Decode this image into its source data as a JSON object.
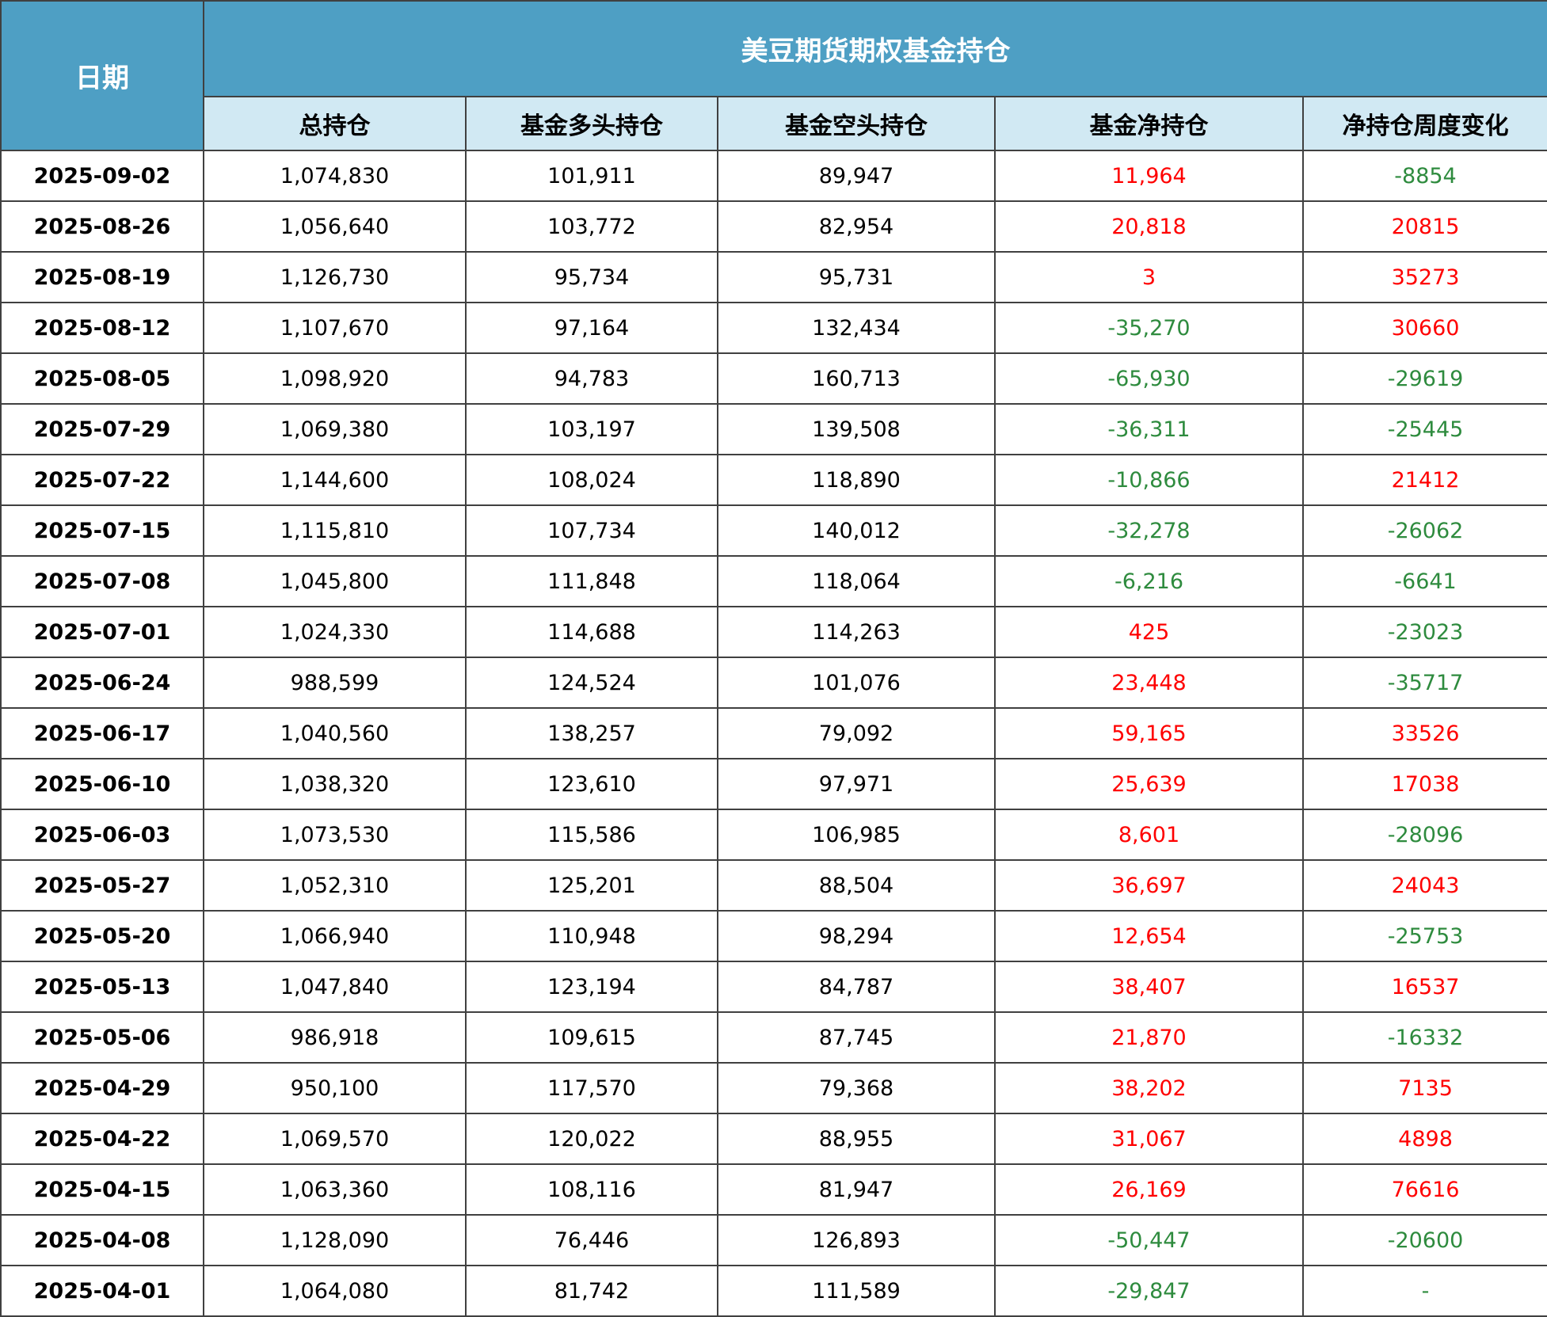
{
  "table": {
    "date_header": "日期",
    "group_header": "美豆期货期权基金持仓",
    "columns": [
      "总持仓",
      "基金多头持仓",
      "基金空头持仓",
      "基金净持仓",
      "净持仓周度变化"
    ],
    "colors": {
      "header_bg": "#4e9fc4",
      "subheader_bg": "#d1e9f3",
      "positive": "#ff0000",
      "negative": "#2e8b3e"
    },
    "rows": [
      {
        "date": "2025-09-02",
        "total": "1,074,830",
        "long": "101,911",
        "short": "89,947",
        "net": "11,964",
        "net_sign": "pos",
        "change": "-8854",
        "change_sign": "neg"
      },
      {
        "date": "2025-08-26",
        "total": "1,056,640",
        "long": "103,772",
        "short": "82,954",
        "net": "20,818",
        "net_sign": "pos",
        "change": "20815",
        "change_sign": "pos"
      },
      {
        "date": "2025-08-19",
        "total": "1,126,730",
        "long": "95,734",
        "short": "95,731",
        "net": "3",
        "net_sign": "pos",
        "change": "35273",
        "change_sign": "pos"
      },
      {
        "date": "2025-08-12",
        "total": "1,107,670",
        "long": "97,164",
        "short": "132,434",
        "net": "-35,270",
        "net_sign": "neg",
        "change": "30660",
        "change_sign": "pos"
      },
      {
        "date": "2025-08-05",
        "total": "1,098,920",
        "long": "94,783",
        "short": "160,713",
        "net": "-65,930",
        "net_sign": "neg",
        "change": "-29619",
        "change_sign": "neg"
      },
      {
        "date": "2025-07-29",
        "total": "1,069,380",
        "long": "103,197",
        "short": "139,508",
        "net": "-36,311",
        "net_sign": "neg",
        "change": "-25445",
        "change_sign": "neg"
      },
      {
        "date": "2025-07-22",
        "total": "1,144,600",
        "long": "108,024",
        "short": "118,890",
        "net": "-10,866",
        "net_sign": "neg",
        "change": "21412",
        "change_sign": "pos"
      },
      {
        "date": "2025-07-15",
        "total": "1,115,810",
        "long": "107,734",
        "short": "140,012",
        "net": "-32,278",
        "net_sign": "neg",
        "change": "-26062",
        "change_sign": "neg"
      },
      {
        "date": "2025-07-08",
        "total": "1,045,800",
        "long": "111,848",
        "short": "118,064",
        "net": "-6,216",
        "net_sign": "neg",
        "change": "-6641",
        "change_sign": "neg"
      },
      {
        "date": "2025-07-01",
        "total": "1,024,330",
        "long": "114,688",
        "short": "114,263",
        "net": "425",
        "net_sign": "pos",
        "change": "-23023",
        "change_sign": "neg"
      },
      {
        "date": "2025-06-24",
        "total": "988,599",
        "long": "124,524",
        "short": "101,076",
        "net": "23,448",
        "net_sign": "pos",
        "change": "-35717",
        "change_sign": "neg"
      },
      {
        "date": "2025-06-17",
        "total": "1,040,560",
        "long": "138,257",
        "short": "79,092",
        "net": "59,165",
        "net_sign": "pos",
        "change": "33526",
        "change_sign": "pos"
      },
      {
        "date": "2025-06-10",
        "total": "1,038,320",
        "long": "123,610",
        "short": "97,971",
        "net": "25,639",
        "net_sign": "pos",
        "change": "17038",
        "change_sign": "pos"
      },
      {
        "date": "2025-06-03",
        "total": "1,073,530",
        "long": "115,586",
        "short": "106,985",
        "net": "8,601",
        "net_sign": "pos",
        "change": "-28096",
        "change_sign": "neg"
      },
      {
        "date": "2025-05-27",
        "total": "1,052,310",
        "long": "125,201",
        "short": "88,504",
        "net": "36,697",
        "net_sign": "pos",
        "change": "24043",
        "change_sign": "pos"
      },
      {
        "date": "2025-05-20",
        "total": "1,066,940",
        "long": "110,948",
        "short": "98,294",
        "net": "12,654",
        "net_sign": "pos",
        "change": "-25753",
        "change_sign": "neg"
      },
      {
        "date": "2025-05-13",
        "total": "1,047,840",
        "long": "123,194",
        "short": "84,787",
        "net": "38,407",
        "net_sign": "pos",
        "change": "16537",
        "change_sign": "pos"
      },
      {
        "date": "2025-05-06",
        "total": "986,918",
        "long": "109,615",
        "short": "87,745",
        "net": "21,870",
        "net_sign": "pos",
        "change": "-16332",
        "change_sign": "neg"
      },
      {
        "date": "2025-04-29",
        "total": "950,100",
        "long": "117,570",
        "short": "79,368",
        "net": "38,202",
        "net_sign": "pos",
        "change": "7135",
        "change_sign": "pos"
      },
      {
        "date": "2025-04-22",
        "total": "1,069,570",
        "long": "120,022",
        "short": "88,955",
        "net": "31,067",
        "net_sign": "pos",
        "change": "4898",
        "change_sign": "pos"
      },
      {
        "date": "2025-04-15",
        "total": "1,063,360",
        "long": "108,116",
        "short": "81,947",
        "net": "26,169",
        "net_sign": "pos",
        "change": "76616",
        "change_sign": "pos"
      },
      {
        "date": "2025-04-08",
        "total": "1,128,090",
        "long": "76,446",
        "short": "126,893",
        "net": "-50,447",
        "net_sign": "neg",
        "change": "-20600",
        "change_sign": "neg"
      },
      {
        "date": "2025-04-01",
        "total": "1,064,080",
        "long": "81,742",
        "short": "111,589",
        "net": "-29,847",
        "net_sign": "neg",
        "change": "-",
        "change_sign": "neg"
      }
    ]
  }
}
